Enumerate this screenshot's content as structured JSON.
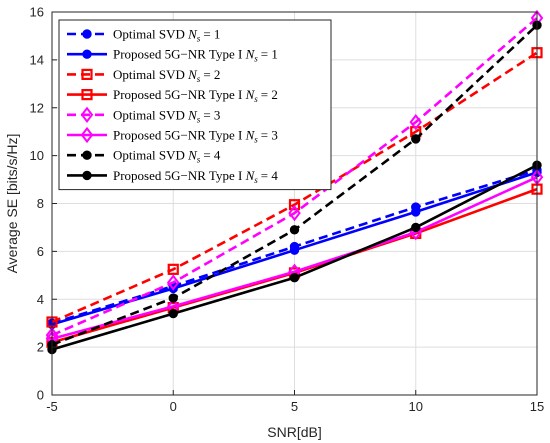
{
  "chart_data": {
    "type": "line",
    "xlabel": "SNR[dB]",
    "ylabel": "Average SE [bits/s/Hz]",
    "xlim": [
      -5,
      15
    ],
    "ylim": [
      0,
      16
    ],
    "x": [
      -5,
      0,
      5,
      10,
      15
    ],
    "x_ticks": [
      "-5",
      "0",
      "5",
      "10",
      "15"
    ],
    "y_ticks": [
      "0",
      "2",
      "4",
      "6",
      "8",
      "10",
      "12",
      "14",
      "16"
    ],
    "grid": true,
    "legend_position": "top-left",
    "series": [
      {
        "name": "Optimal SVD N_s = 1",
        "label_prefix": "Optimal SVD ",
        "ns_text": "= 1",
        "color": "#0000ff",
        "dashed": true,
        "marker": "circle",
        "values": [
          3.0,
          4.55,
          6.2,
          7.85,
          9.4
        ]
      },
      {
        "name": "Proposed 5G-NR Type I N_s = 1",
        "label_prefix": "Proposed 5G−NR Type I ",
        "ns_text": "= 1",
        "color": "#0000ff",
        "dashed": false,
        "marker": "circle",
        "values": [
          2.95,
          4.45,
          6.05,
          7.65,
          9.3
        ]
      },
      {
        "name": "Optimal SVD N_s = 2",
        "label_prefix": "Optimal SVD ",
        "ns_text": "= 2",
        "color": "#ff0000",
        "dashed": true,
        "marker": "square",
        "values": [
          3.05,
          5.25,
          7.95,
          11.0,
          14.3
        ]
      },
      {
        "name": "Proposed 5G-NR Type I N_s = 2",
        "label_prefix": "Proposed 5G−NR Type I ",
        "ns_text": "= 2",
        "color": "#ff0000",
        "dashed": false,
        "marker": "square",
        "values": [
          2.2,
          3.65,
          5.1,
          6.75,
          8.6
        ]
      },
      {
        "name": "Optimal SVD N_s = 3",
        "label_prefix": "Optimal SVD ",
        "ns_text": "= 3",
        "color": "#ff00ff",
        "dashed": true,
        "marker": "diamond",
        "values": [
          2.5,
          4.7,
          7.6,
          11.4,
          15.75
        ]
      },
      {
        "name": "Proposed 5G-NR Type I N_s = 3",
        "label_prefix": "Proposed 5G−NR Type I ",
        "ns_text": "= 3",
        "color": "#ff00ff",
        "dashed": false,
        "marker": "diamond",
        "values": [
          2.35,
          3.7,
          5.15,
          6.8,
          9.1
        ]
      },
      {
        "name": "Optimal SVD N_s = 4",
        "label_prefix": "Optimal SVD ",
        "ns_text": "= 4",
        "color": "#000000",
        "dashed": true,
        "marker": "circle",
        "values": [
          2.1,
          4.05,
          6.9,
          10.7,
          15.45
        ]
      },
      {
        "name": "Proposed 5G-NR Type I N_s = 4",
        "label_prefix": "Proposed 5G−NR Type I ",
        "ns_text": "= 4",
        "color": "#000000",
        "dashed": false,
        "marker": "circle",
        "values": [
          1.9,
          3.4,
          4.9,
          7.0,
          9.6
        ]
      }
    ]
  }
}
